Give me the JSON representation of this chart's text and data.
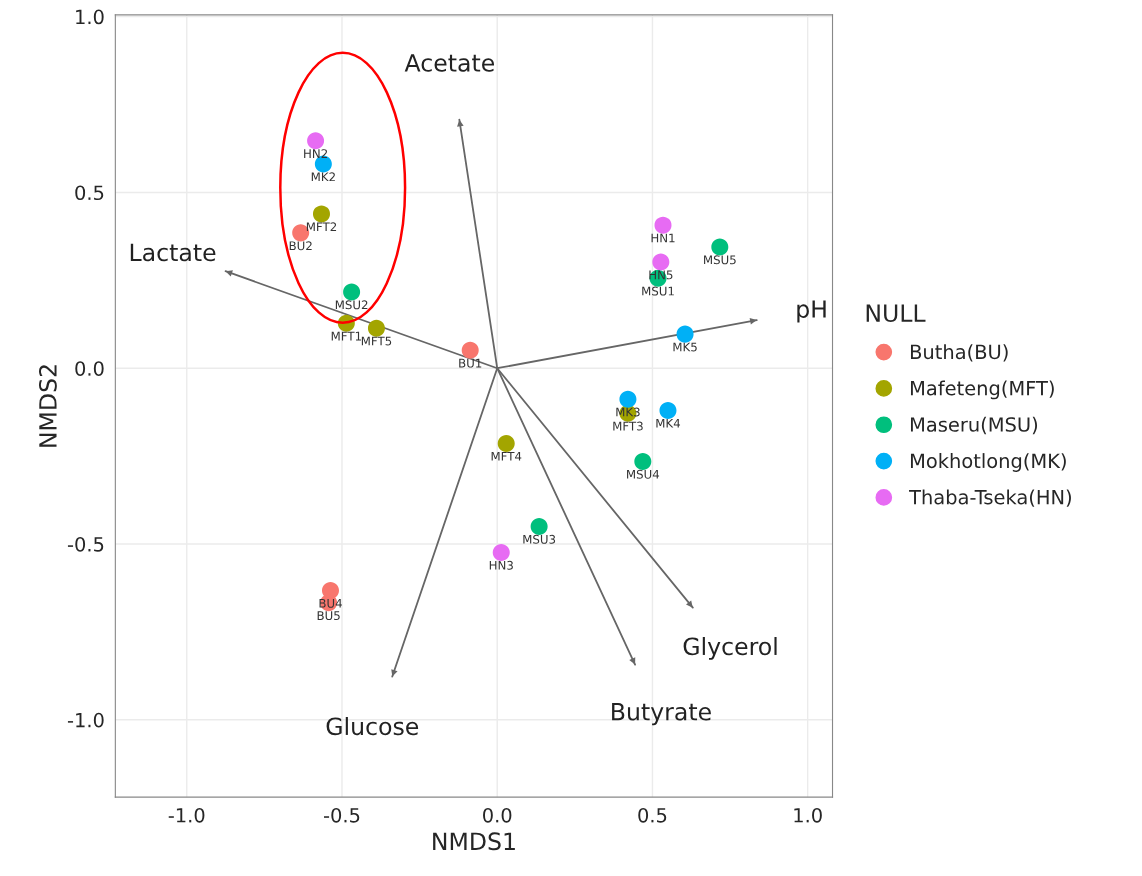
{
  "chart_data": {
    "type": "scatter",
    "xlabel": "NMDS1",
    "ylabel": "NMDS2",
    "legend_title": "NULL",
    "xlim": [
      -1.23,
      1.08
    ],
    "ylim": [
      -1.22,
      1.005
    ],
    "xticks": [
      {
        "value": -1.0,
        "label": "-1.0"
      },
      {
        "value": -0.5,
        "label": "-0.5"
      },
      {
        "value": 0.0,
        "label": "0.0"
      },
      {
        "value": 0.5,
        "label": "0.5"
      },
      {
        "value": 1.0,
        "label": "1.0"
      }
    ],
    "yticks": [
      {
        "value": -1.0,
        "label": "-1.0"
      },
      {
        "value": -0.5,
        "label": "-0.5"
      },
      {
        "value": 0.0,
        "label": "0.0"
      },
      {
        "value": 0.5,
        "label": "0.5"
      },
      {
        "value": 1.0,
        "label": "1.0"
      }
    ],
    "grid": true,
    "legend": "right",
    "marker": "circle",
    "series": [
      {
        "name": "Butha(BU)",
        "color": "#f8766d",
        "x": [
          -0.087,
          -0.633,
          -0.537,
          -0.543
        ],
        "values": [
          0.051,
          0.385,
          -0.632,
          -0.667
        ],
        "value_labels": [
          "BU1",
          "BU2",
          "BU4",
          "BU5"
        ]
      },
      {
        "name": "Mafeteng(MFT)",
        "color": "#a3a500",
        "x": [
          -0.486,
          -0.566,
          0.421,
          0.029,
          -0.389
        ],
        "values": [
          0.128,
          0.439,
          -0.128,
          -0.214,
          0.114
        ],
        "value_labels": [
          "MFT1",
          "MFT2",
          "MFT3",
          "MFT4",
          "MFT5"
        ]
      },
      {
        "name": "Maseru(MSU)",
        "color": "#00bf7d",
        "x": [
          0.518,
          -0.469,
          0.135,
          0.469,
          0.717
        ],
        "values": [
          0.256,
          0.217,
          -0.45,
          -0.265,
          0.345
        ],
        "value_labels": [
          "MSU1",
          "MSU2",
          "MSU3",
          "MSU4",
          "MSU5"
        ]
      },
      {
        "name": "Mokhotlong(MK)",
        "color": "#00b0f6",
        "x": [
          -0.56,
          0.421,
          0.55,
          0.605
        ],
        "values": [
          0.581,
          -0.088,
          -0.12,
          0.097
        ],
        "value_labels": [
          "MK2",
          "MK3",
          "MK4",
          "MK5"
        ]
      },
      {
        "name": "Thaba-Tseka(HN)",
        "color": "#e76bf3",
        "x": [
          0.534,
          -0.585,
          0.013,
          0.527
        ],
        "values": [
          0.407,
          0.647,
          -0.524,
          0.302
        ],
        "value_labels": [
          "HN1",
          "HN2",
          "HN3",
          "HN5"
        ]
      },
      {
        "type": "line",
        "marker": "none",
        "color": "#666666",
        "x": [
          0.0,
          -0.122
        ],
        "values": [
          0.0,
          0.707
        ]
      },
      {
        "type": "line",
        "marker": "none",
        "color": "#666666",
        "x": [
          0.0,
          -0.875
        ],
        "values": [
          0.0,
          0.276
        ]
      },
      {
        "type": "line",
        "marker": "none",
        "color": "#666666",
        "x": [
          0.0,
          0.836
        ],
        "values": [
          0.0,
          0.137
        ]
      },
      {
        "type": "line",
        "marker": "none",
        "color": "#666666",
        "x": [
          0.0,
          0.63
        ],
        "values": [
          0.0,
          -0.681
        ]
      },
      {
        "type": "line",
        "marker": "none",
        "color": "#666666",
        "x": [
          0.0,
          0.444
        ],
        "values": [
          0.0,
          -0.843
        ]
      },
      {
        "type": "line",
        "marker": "none",
        "color": "#666666",
        "x": [
          0.0,
          -0.338
        ],
        "values": [
          0.0,
          -0.877
        ]
      }
    ],
    "annotations": [
      {
        "text": "Acetate",
        "x": -0.122,
        "y": 0.707
      },
      {
        "text": "Lactate",
        "x": -0.875,
        "y": 0.276
      },
      {
        "text": "pH",
        "x": 0.836,
        "y": 0.137
      },
      {
        "text": "Glycerol",
        "x": 0.63,
        "y": -0.681
      },
      {
        "text": "Butyrate",
        "x": 0.444,
        "y": -0.843
      },
      {
        "text": "Glucose",
        "x": -0.338,
        "y": -0.877
      }
    ]
  }
}
